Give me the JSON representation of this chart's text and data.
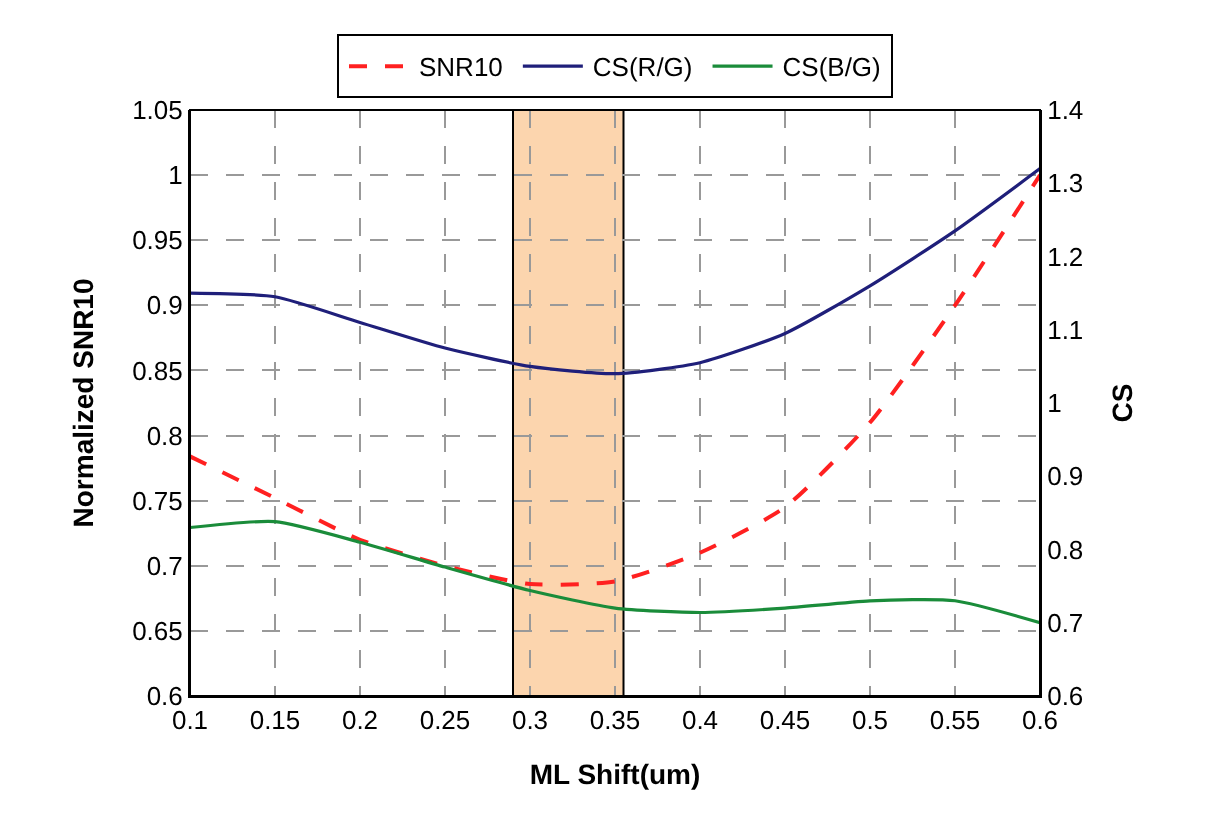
{
  "chart_data": {
    "type": "line",
    "xlabel": "ML Shift(um)",
    "ylabel": "Normalized SNR10",
    "y2label": "CS",
    "x": [
      0.1,
      0.15,
      0.2,
      0.25,
      0.3,
      0.35,
      0.4,
      0.45,
      0.5,
      0.55,
      0.6
    ],
    "series": [
      {
        "name": "SNR10",
        "color": "#ff2020",
        "line_style": "dashed",
        "values": [
          0.784,
          0.752,
          0.72,
          0.7,
          0.686,
          0.688,
          0.71,
          0.745,
          0.81,
          0.9,
          1.0
        ]
      },
      {
        "name": "CS(R/G)",
        "color": "#1f1f7a",
        "axis": "y2",
        "values": [
          1.15,
          1.145,
          1.11,
          1.075,
          1.05,
          1.04,
          1.055,
          1.095,
          1.16,
          1.235,
          1.32
        ]
      },
      {
        "name": "CS(B/G)",
        "color": "#1a8c3a",
        "axis": "y2",
        "values": [
          0.83,
          0.838,
          0.81,
          0.776,
          0.744,
          0.72,
          0.714,
          0.72,
          0.73,
          0.73,
          0.7
        ]
      }
    ],
    "xlim": [
      0.1,
      0.6
    ],
    "xticks": [
      0.1,
      0.15,
      0.2,
      0.25,
      0.3,
      0.35,
      0.4,
      0.45,
      0.5,
      0.55,
      0.6
    ],
    "ylim": [
      0.6,
      1.05
    ],
    "yticks": [
      0.6,
      0.65,
      0.7,
      0.75,
      0.8,
      0.85,
      0.9,
      0.95,
      1,
      1.05
    ],
    "y2lim": [
      0.6,
      1.4
    ],
    "y2ticks": [
      0.6,
      0.7,
      0.8,
      0.9,
      1,
      1.1,
      1.2,
      1.3,
      1.4
    ],
    "bands": [
      {
        "axis": "x",
        "from": 0.29,
        "to": 0.355,
        "color": "#fcd5ae"
      }
    ],
    "grid": true,
    "legend": "top",
    "marker": "none"
  }
}
